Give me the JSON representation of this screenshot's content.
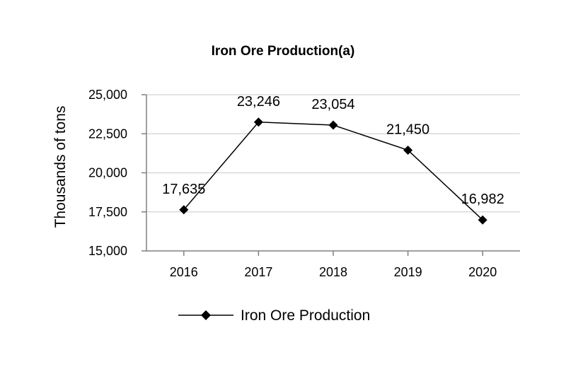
{
  "chart_data": {
    "type": "line",
    "title": "Iron Ore Production(a)",
    "xlabel": "",
    "ylabel": "Thousands of tons",
    "categories": [
      "2016",
      "2017",
      "2018",
      "2019",
      "2020"
    ],
    "series": [
      {
        "name": "Iron Ore Production",
        "values": [
          17635,
          23246,
          23054,
          21450,
          16982
        ]
      }
    ],
    "data_labels": [
      "17,635",
      "23,246",
      "23,054",
      "21,450",
      "16,982"
    ],
    "ylim": [
      15000,
      25000
    ],
    "yticks": [
      15000,
      17500,
      20000,
      22500,
      25000
    ],
    "ytick_labels": [
      "15,000",
      "17,500",
      "20,000",
      "22,500",
      "25,000"
    ],
    "grid": true,
    "legend_position": "bottom-center",
    "colors": {
      "line": "#000000",
      "grid": "#d9d9d9",
      "axis": "#808080"
    }
  }
}
